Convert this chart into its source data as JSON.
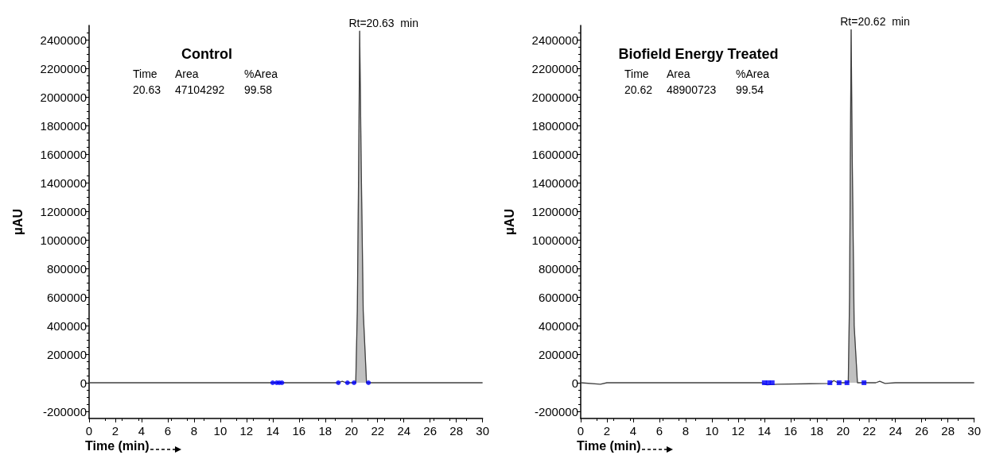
{
  "chart_data": [
    {
      "type": "line",
      "title": "Control",
      "xlabel": "Time (min)",
      "ylabel": "μAU",
      "xlim": [
        0,
        30
      ],
      "xticks": [
        0,
        2,
        4,
        6,
        8,
        10,
        12,
        14,
        16,
        18,
        20,
        22,
        24,
        26,
        28,
        30
      ],
      "ylim": [
        -250000,
        2500000
      ],
      "yticks": [
        -200000,
        0,
        200000,
        400000,
        600000,
        800000,
        1000000,
        1200000,
        1400000,
        1600000,
        1800000,
        2000000,
        2200000,
        2400000
      ],
      "grid": false,
      "annotations": [
        "Time",
        "Area",
        "%Area",
        "20.63",
        "47104292",
        "99.58",
        {
          "text": "Rt=20.63  min",
          "x": 20.63,
          "y": 2460000
        }
      ],
      "series": [
        {
          "type": "area",
          "color": "#c0c0c0",
          "x": [
            20.33,
            20.45,
            20.55,
            20.63,
            20.75,
            20.9,
            21.15
          ],
          "values": [
            0,
            500000,
            1500000,
            2460000,
            1500000,
            500000,
            0
          ]
        },
        {
          "color": "#404040",
          "x": [
            0,
            14,
            15,
            19,
            19.3,
            19.6,
            20.33,
            20.45,
            20.55,
            20.63,
            20.75,
            20.9,
            21.15,
            22,
            30
          ],
          "values": [
            0,
            0,
            0,
            0,
            10000,
            0,
            0,
            500000,
            1500000,
            2460000,
            1500000,
            500000,
            0,
            0,
            0
          ]
        },
        {
          "type": "scatter",
          "color": "#0000ff",
          "marker": "circle",
          "x": [
            14.0,
            14.3,
            14.5,
            14.7,
            19.0,
            19.7,
            20.2,
            21.3
          ],
          "values": [
            0,
            0,
            0,
            0,
            0,
            0,
            0,
            0
          ]
        }
      ]
    },
    {
      "type": "line",
      "title": "Biofield Energy Treated",
      "xlabel": "Time (min)",
      "ylabel": "μAU",
      "xlim": [
        0,
        30
      ],
      "xticks": [
        0,
        2,
        4,
        6,
        8,
        10,
        12,
        14,
        16,
        18,
        20,
        22,
        24,
        26,
        28,
        30
      ],
      "ylim": [
        -250000,
        2500000
      ],
      "yticks": [
        -200000,
        0,
        200000,
        400000,
        600000,
        800000,
        1000000,
        1200000,
        1400000,
        1600000,
        1800000,
        2000000,
        2200000,
        2400000
      ],
      "grid": false,
      "annotations": [
        "Time",
        "Area",
        "%Area",
        "20.62",
        "48900723",
        "99.54",
        {
          "text": "Rt=20.62  min",
          "x": 20.62,
          "y": 2470000
        }
      ],
      "series": [
        {
          "type": "area",
          "color": "#c0c0c0",
          "x": [
            20.4,
            20.5,
            20.56,
            20.62,
            20.7,
            20.85,
            21.1
          ],
          "values": [
            0,
            600000,
            1600000,
            2470000,
            1600000,
            400000,
            0
          ]
        },
        {
          "color": "#404040",
          "x": [
            0,
            1.5,
            2,
            13.8,
            14.2,
            15,
            19,
            19.3,
            19.6,
            20.4,
            20.5,
            20.56,
            20.62,
            20.7,
            20.85,
            21.1,
            22.5,
            22.8,
            23.2,
            24,
            30
          ],
          "values": [
            0,
            -10000,
            0,
            0,
            -15000,
            -10000,
            -5000,
            15000,
            0,
            0,
            600000,
            1600000,
            2470000,
            1600000,
            400000,
            0,
            0,
            10000,
            -5000,
            0,
            0
          ]
        },
        {
          "type": "scatter",
          "color": "#0000ff",
          "marker": "square",
          "x": [
            14.0,
            14.3,
            14.6,
            19.0,
            19.7,
            20.3,
            21.6
          ],
          "values": [
            0,
            0,
            0,
            0,
            0,
            0,
            0
          ]
        }
      ]
    }
  ]
}
